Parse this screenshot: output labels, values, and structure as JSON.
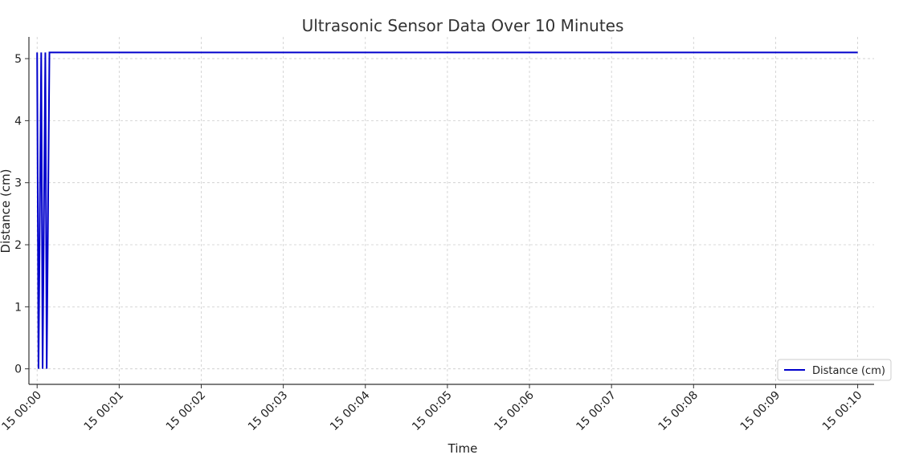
{
  "chart_data": {
    "type": "line",
    "title": "Ultrasonic Sensor Data Over 10 Minutes",
    "xlabel": "Time",
    "ylabel": "Distance (cm)",
    "ylim": [
      -0.25,
      5.35
    ],
    "xlim": [
      -0.1,
      10.2
    ],
    "yticks": [
      0,
      1,
      2,
      3,
      4,
      5
    ],
    "x_unit": "minutes",
    "xticks": [
      {
        "value": 0,
        "label": "15 00:00"
      },
      {
        "value": 1,
        "label": "15 00:01"
      },
      {
        "value": 2,
        "label": "15 00:02"
      },
      {
        "value": 3,
        "label": "15 00:03"
      },
      {
        "value": 4,
        "label": "15 00:04"
      },
      {
        "value": 5,
        "label": "15 00:05"
      },
      {
        "value": 6,
        "label": "15 00:06"
      },
      {
        "value": 7,
        "label": "15 00:07"
      },
      {
        "value": 8,
        "label": "15 00:08"
      },
      {
        "value": 9,
        "label": "15 00:09"
      },
      {
        "value": 10,
        "label": "15 00:10"
      }
    ],
    "grid": true,
    "legend_position": "lower-right",
    "series": [
      {
        "name": "Distance (cm)",
        "color": "#0000cc",
        "x": [
          0,
          0.0167,
          0.05,
          0.0667,
          0.1,
          0.1167,
          0.15,
          0.1667,
          10
        ],
        "y": [
          5.1,
          0,
          5.1,
          0,
          5.1,
          0,
          5.1,
          5.1,
          5.1
        ]
      }
    ]
  }
}
